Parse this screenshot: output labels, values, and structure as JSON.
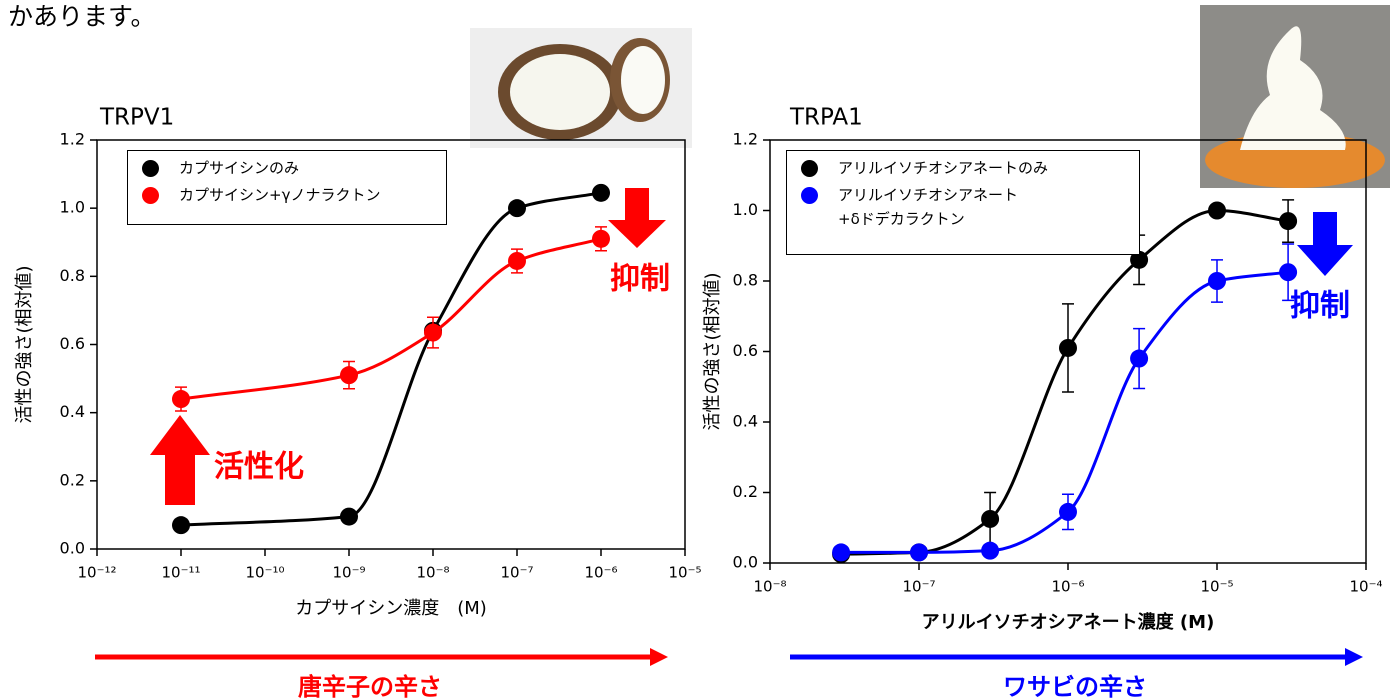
{
  "intro_text": "かあります。",
  "chart_data": [
    {
      "type": "scatter",
      "title": "TRPV1",
      "x_label": "カプサイシン濃度　(M)",
      "y_label": "活性の強さ(相対値)",
      "xscale": "log",
      "xlim": [
        1e-12,
        1e-05
      ],
      "xticks": [
        {
          "value": 1e-12,
          "label": "10⁻¹²"
        },
        {
          "value": 1e-11,
          "label": "10⁻¹¹"
        },
        {
          "value": 1e-10,
          "label": "10⁻¹⁰"
        },
        {
          "value": 1e-09,
          "label": "10⁻⁹"
        },
        {
          "value": 1e-08,
          "label": "10⁻⁸"
        },
        {
          "value": 1e-07,
          "label": "10⁻⁷"
        },
        {
          "value": 1e-06,
          "label": "10⁻⁶"
        },
        {
          "value": 1e-05,
          "label": "10⁻⁵"
        }
      ],
      "ylim": [
        0,
        1.2
      ],
      "yticks": [
        {
          "value": 0,
          "label": "0.0"
        },
        0.2,
        0.4,
        0.6,
        0.8,
        {
          "value": 1,
          "label": "1.0"
        },
        1.2
      ],
      "series": [
        {
          "name": "カプサイシンのみ",
          "color": "#000000",
          "x": [
            1e-11,
            1e-09,
            1e-08,
            1e-07,
            1e-06
          ],
          "values": [
            0.07,
            0.095,
            0.64,
            1.0,
            1.045
          ]
        },
        {
          "name": "カプサイシン+γノナラクトン",
          "color": "#ff0000",
          "x": [
            1e-11,
            1e-09,
            1e-08,
            1e-07,
            1e-06
          ],
          "values": [
            0.44,
            0.51,
            0.635,
            0.845,
            0.91
          ],
          "errors": [
            0.035,
            0.04,
            0.045,
            0.035,
            0.035
          ]
        }
      ],
      "annotations": [
        "抑制",
        "活性化"
      ],
      "footer": "唐辛子の辛さ"
    },
    {
      "type": "scatter",
      "title": "TRPA1",
      "x_label": "アリルイソチオシアネート濃度 (M)",
      "y_label": "活性の強さ(相対値)",
      "xscale": "log",
      "xlim": [
        1e-08,
        0.0001
      ],
      "xticks": [
        {
          "value": 1e-08,
          "label": "10⁻⁸"
        },
        {
          "value": 1e-07,
          "label": "10⁻⁷"
        },
        {
          "value": 1e-06,
          "label": "10⁻⁶"
        },
        {
          "value": 1e-05,
          "label": "10⁻⁵"
        },
        {
          "value": 0.0001,
          "label": "10⁻⁴"
        }
      ],
      "ylim": [
        0,
        1.2
      ],
      "yticks": [
        {
          "value": 0,
          "label": "0.0"
        },
        0.2,
        0.4,
        0.6,
        0.8,
        {
          "value": 1,
          "label": "1.0"
        },
        1.2
      ],
      "series": [
        {
          "name": "アリルイソチオシアネートのみ",
          "color": "#000000",
          "x": [
            3e-08,
            1e-07,
            3e-07,
            1e-06,
            3e-06,
            1e-05,
            3e-05
          ],
          "values": [
            0.025,
            0.03,
            0.125,
            0.61,
            0.86,
            1.0,
            0.97
          ],
          "errors": [
            0.005,
            0.01,
            0.075,
            0.125,
            0.07,
            0.01,
            0.06
          ]
        },
        {
          "name": "アリルイソチオシアネート\n+δドデカラクトン",
          "color": "#0000ff",
          "x": [
            3e-08,
            1e-07,
            3e-07,
            1e-06,
            3e-06,
            1e-05,
            3e-05
          ],
          "values": [
            0.03,
            0.03,
            0.035,
            0.145,
            0.58,
            0.8,
            0.825
          ],
          "errors": [
            0.005,
            0.005,
            0.01,
            0.05,
            0.085,
            0.06,
            0.08
          ]
        }
      ],
      "annotations": [
        "抑制"
      ],
      "footer": "ワサビの辛さ"
    }
  ]
}
